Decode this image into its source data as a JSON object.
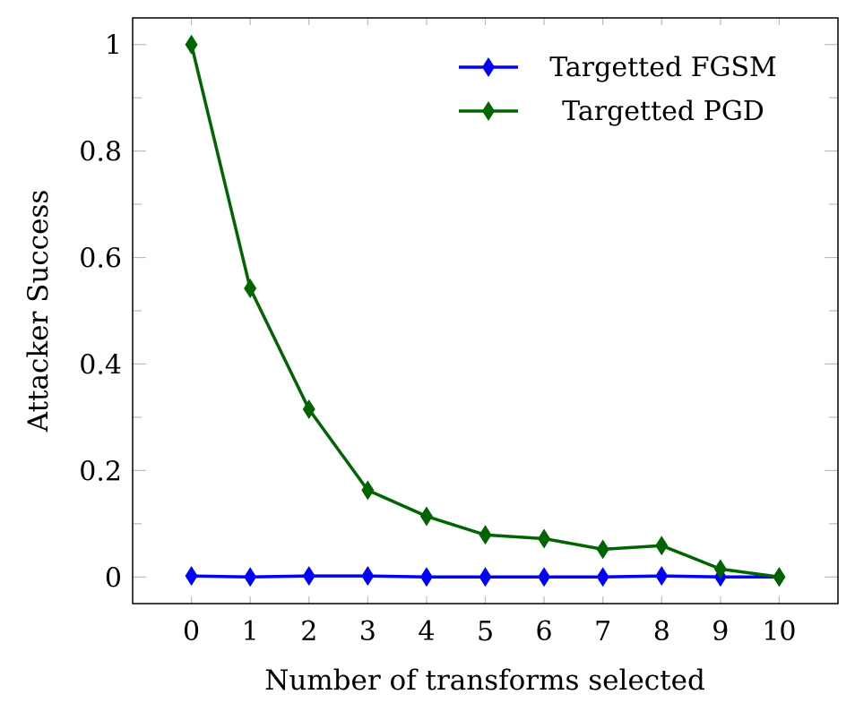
{
  "chart_data": {
    "type": "line",
    "title": "",
    "xlabel": "Number of transforms selected",
    "ylabel": "Attacker Success",
    "x": [
      0,
      1,
      2,
      3,
      4,
      5,
      6,
      7,
      8,
      9,
      10
    ],
    "xticks": [
      "0",
      "1",
      "2",
      "3",
      "4",
      "5",
      "6",
      "7",
      "8",
      "9",
      "10"
    ],
    "yticks": [
      "0",
      "0.2",
      "0.4",
      "0.6",
      "0.8",
      "1"
    ],
    "ytick_values": [
      0,
      0.2,
      0.4,
      0.6,
      0.8,
      1
    ],
    "xlim": [
      -1,
      11
    ],
    "ylim": [
      -0.05,
      1.05
    ],
    "grid": false,
    "legend_position": "top-right",
    "series": [
      {
        "name": "Targetted FGSM",
        "color": "#0000ff",
        "marker": "diamond",
        "values": [
          0.002,
          0.0,
          0.002,
          0.002,
          0.0,
          0.0,
          0.0,
          0.0,
          0.002,
          0.0,
          0.0
        ]
      },
      {
        "name": "Targetted PGD",
        "color": "#006400",
        "marker": "diamond",
        "values": [
          1.0,
          0.542,
          0.315,
          0.163,
          0.114,
          0.079,
          0.072,
          0.052,
          0.059,
          0.015,
          0.0
        ]
      }
    ]
  }
}
